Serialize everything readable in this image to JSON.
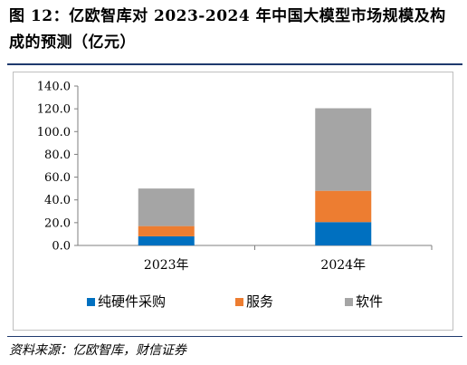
{
  "title": "图 12：亿欧智库对 2023-2024 年中国大模型市场规模及构成的预测（亿元）",
  "source": "资料来源：亿欧智库，财信证券",
  "chart_data": {
    "type": "bar",
    "stacked": true,
    "categories": [
      "2023年",
      "2024年"
    ],
    "series": [
      {
        "name": "纯硬件采购",
        "values": [
          8.0,
          20.5
        ],
        "color": "#0070c0"
      },
      {
        "name": "服务",
        "values": [
          9.0,
          27.5
        ],
        "color": "#ed7d31"
      },
      {
        "name": "软件",
        "values": [
          33.0,
          72.5
        ],
        "color": "#a5a5a5"
      }
    ],
    "ylim": [
      0,
      140
    ],
    "yticks": [
      "0.0",
      "20.0",
      "40.0",
      "60.0",
      "80.0",
      "100.0",
      "120.0",
      "140.0"
    ],
    "legend_position": "bottom",
    "grid": false
  }
}
